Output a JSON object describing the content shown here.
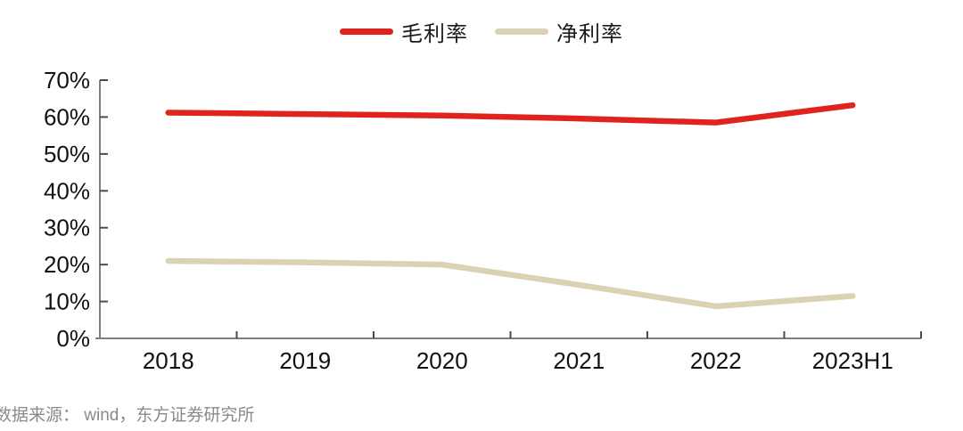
{
  "chart_data": {
    "type": "line",
    "categories": [
      "2018",
      "2019",
      "2020",
      "2021",
      "2022",
      "2023H1"
    ],
    "series": [
      {
        "id": "gross-margin",
        "name": "毛利率",
        "color": "#e0231c",
        "values": [
          61.2,
          60.8,
          60.4,
          59.6,
          58.5,
          63.2
        ]
      },
      {
        "id": "net-margin",
        "name": "净利率",
        "color": "#dbd2b4",
        "values": [
          21.0,
          20.6,
          20.0,
          14.5,
          8.7,
          11.5
        ]
      }
    ],
    "title": "",
    "xlabel": "",
    "ylabel": "",
    "ylim": [
      0,
      70
    ],
    "y_tick_step": 10,
    "y_tick_labels": [
      "0%",
      "10%",
      "20%",
      "30%",
      "40%",
      "50%",
      "60%",
      "70%"
    ],
    "grid": false,
    "legend_position": "top-center"
  },
  "colors": {
    "axis_line": "#7f7f7f",
    "tick_mark": "#4a4a4a",
    "axis_label": "#111111",
    "source_text": "#8a8a8a",
    "background": "#ffffff"
  },
  "footer": {
    "source": "数据来源： wind，东方证券研究所"
  }
}
